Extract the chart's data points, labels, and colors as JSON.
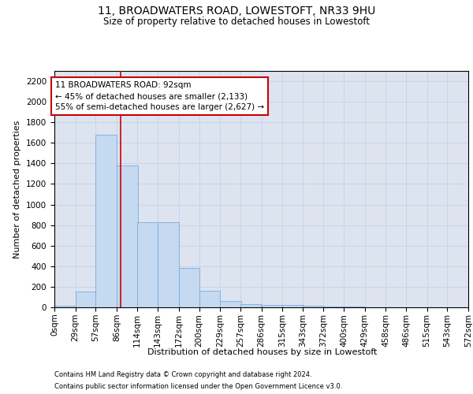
{
  "title": "11, BROADWATERS ROAD, LOWESTOFT, NR33 9HU",
  "subtitle": "Size of property relative to detached houses in Lowestoft",
  "xlabel": "Distribution of detached houses by size in Lowestoft",
  "ylabel": "Number of detached properties",
  "footer_line1": "Contains HM Land Registry data © Crown copyright and database right 2024.",
  "footer_line2": "Contains public sector information licensed under the Open Government Licence v3.0.",
  "annotation_line1": "11 BROADWATERS ROAD: 92sqm",
  "annotation_line2": "← 45% of detached houses are smaller (2,133)",
  "annotation_line3": "55% of semi-detached houses are larger (2,627) →",
  "property_size": 92,
  "bin_edges": [
    0,
    29,
    57,
    86,
    114,
    143,
    172,
    200,
    229,
    257,
    286,
    315,
    343,
    372,
    400,
    429,
    458,
    486,
    515,
    543,
    572
  ],
  "bar_values": [
    15,
    150,
    1680,
    1380,
    830,
    830,
    380,
    160,
    60,
    30,
    25,
    20,
    15,
    10,
    5,
    3,
    2,
    1,
    1,
    0
  ],
  "bar_color": "#c5d9f1",
  "bar_edge_color": "#7aabda",
  "vline_color": "#cc0000",
  "annotation_box_color": "#cc0000",
  "grid_color": "#c8d4e8",
  "ylim": [
    0,
    2300
  ],
  "yticks": [
    0,
    200,
    400,
    600,
    800,
    1000,
    1200,
    1400,
    1600,
    1800,
    2000,
    2200
  ],
  "background_color": "#dde4f0",
  "title_fontsize": 10,
  "subtitle_fontsize": 8.5,
  "axis_label_fontsize": 8,
  "tick_fontsize": 7.5,
  "footer_fontsize": 6,
  "annotation_fontsize": 7.5
}
